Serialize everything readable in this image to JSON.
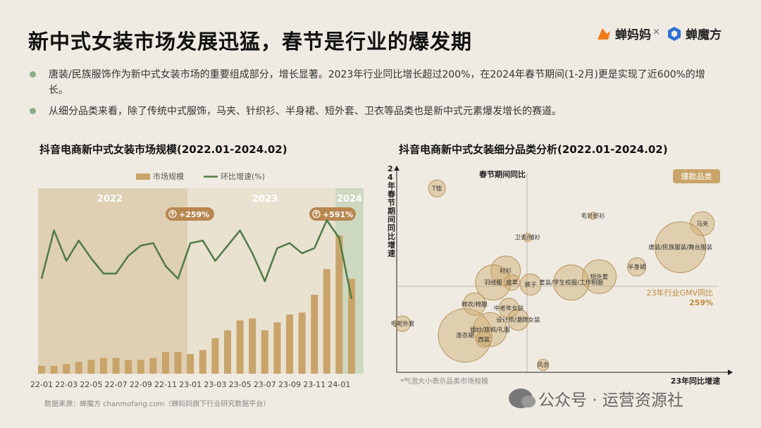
{
  "header": {
    "title": "新中式女装市场发展迅猛，春节是行业的爆发期",
    "logo1": "蝉妈妈",
    "logo_sep": "×",
    "logo2": "蝉魔方"
  },
  "bullets": [
    "唐装/民族服饰作为新中式女装市场的重要组成部分，增长显著。2023年行业同比增长超过200%，在2024年春节期间(1-2月)更是实现了近600%的增长。",
    "从细分品类来看，除了传统中式服饰，马夹、针织衫、半身裙、短外套、卫衣等品类也是新中式元素爆发增长的赛道。"
  ],
  "left_chart_title": "抖音电商新中式女装市场规模(2022.01-2024.02)",
  "right_chart_title": "抖音电商新中式女装细分品类分析(2022.01-2024.02)",
  "source_note": "数据来源：蝉魔方 chanmofang.com（蝉妈妈旗下行业研究数据平台）",
  "bubble_note": "*气泡大小表示品类市场规模",
  "watermark": "公众号 · 运营资源社",
  "colors": {
    "bar": "#c9a46a",
    "line": "#4f7a45",
    "badge": "#b8874f",
    "accent": "#c0883b"
  },
  "chart_data": [
    {
      "type": "bar+line",
      "legend": [
        "市场规模",
        "环比增速(%)"
      ],
      "legend_position": "top-right",
      "periods": [
        "2022",
        "2023",
        "2024"
      ],
      "period_growth": [
        "+259%",
        "+591%"
      ],
      "x": [
        "22-01",
        "22-02",
        "22-03",
        "22-04",
        "22-05",
        "22-06",
        "22-07",
        "22-08",
        "22-09",
        "22-10",
        "22-11",
        "22-12",
        "23-01",
        "23-02",
        "23-03",
        "23-04",
        "23-05",
        "23-06",
        "23-07",
        "23-08",
        "23-09",
        "23-10",
        "23-11",
        "23-12",
        "24-01",
        "24-02"
      ],
      "x_tick_labels": [
        "22-01",
        "22-03",
        "22-05",
        "22-07",
        "22-09",
        "22-11",
        "23-01",
        "23-03",
        "23-05",
        "23-07",
        "23-09",
        "23-11",
        "24-01"
      ],
      "bar_values": [
        4,
        4,
        5,
        6,
        7,
        8,
        8,
        7,
        7,
        8,
        11,
        11,
        10,
        12,
        18,
        22,
        27,
        28,
        22,
        26,
        30,
        31,
        40,
        53,
        70,
        48
      ],
      "line_values": [
        48,
        67,
        55,
        63,
        56,
        50,
        50,
        57,
        61,
        62,
        53,
        48,
        62,
        63,
        55,
        61,
        67,
        58,
        47,
        60,
        62,
        58,
        60,
        71,
        64,
        40
      ]
    },
    {
      "type": "scatter",
      "xlabel": "23年同比增速",
      "ylabel": "24年春节期间同比增速",
      "center_labels": {
        "y": "春节期间同比",
        "x": "23年行业GMV同比",
        "x_value": "259%"
      },
      "legend_badge": "爆款品类",
      "points": [
        {
          "label": "T恤",
          "x": 12,
          "y": 92,
          "size": 12
        },
        {
          "label": "毛针织衫",
          "x": 62,
          "y": 78,
          "size": 5
        },
        {
          "label": "马夹",
          "x": 97,
          "y": 74,
          "size": 17
        },
        {
          "label": "卫衣/绒衫",
          "x": 41,
          "y": 67,
          "size": 6
        },
        {
          "label": "唐装/民族服装/舞台服装",
          "x": 90,
          "y": 62,
          "size": 36
        },
        {
          "label": "半身裙",
          "x": 76,
          "y": 52,
          "size": 13
        },
        {
          "label": "衬衫",
          "x": 34,
          "y": 50,
          "size": 21
        },
        {
          "label": "短外套",
          "x": 64,
          "y": 47,
          "size": 24
        },
        {
          "label": "套装/学生校服/工作制服",
          "x": 55,
          "y": 44,
          "size": 25
        },
        {
          "label": "羽绒服",
          "x": 30,
          "y": 44,
          "size": 25
        },
        {
          "label": "皮草",
          "x": 36,
          "y": 44,
          "size": 11
        },
        {
          "label": "裤子",
          "x": 42,
          "y": 43,
          "size": 15
        },
        {
          "label": "棉衣/棉服",
          "x": 24,
          "y": 33,
          "size": 16
        },
        {
          "label": "中老年女装",
          "x": 35,
          "y": 31,
          "size": 14
        },
        {
          "label": "设计师/潮牌女装",
          "x": 38,
          "y": 25,
          "size": 15
        },
        {
          "label": "毛呢外套",
          "x": 1,
          "y": 23,
          "size": 11
        },
        {
          "label": "婚纱/旗袍/礼服",
          "x": 29,
          "y": 20,
          "size": 24
        },
        {
          "label": "连衣裙",
          "x": 21,
          "y": 17,
          "size": 38
        },
        {
          "label": "西装",
          "x": 27,
          "y": 15,
          "size": 11
        },
        {
          "label": "风衣",
          "x": 46,
          "y": 2,
          "size": 8
        }
      ]
    }
  ]
}
